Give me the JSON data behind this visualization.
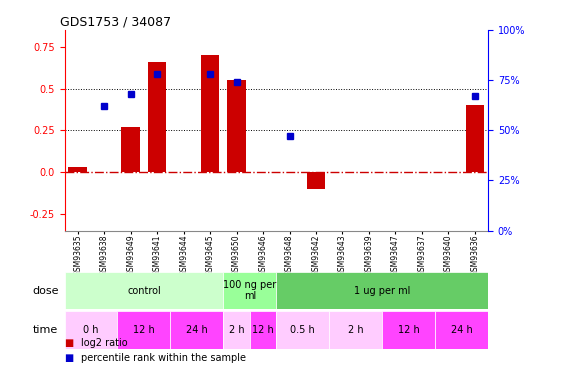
{
  "title": "GDS1753 / 34087",
  "samples": [
    "GSM93635",
    "GSM93638",
    "GSM93649",
    "GSM93641",
    "GSM93644",
    "GSM93645",
    "GSM93650",
    "GSM93646",
    "GSM93648",
    "GSM93642",
    "GSM93643",
    "GSM93639",
    "GSM93647",
    "GSM93637",
    "GSM93640",
    "GSM93636"
  ],
  "log2_ratio": [
    0.03,
    0.0,
    0.27,
    0.66,
    0.0,
    0.7,
    0.55,
    0.0,
    0.0,
    -0.1,
    0.0,
    0.0,
    0.0,
    0.0,
    0.0,
    0.4
  ],
  "percentile_rank": [
    null,
    0.62,
    0.68,
    0.78,
    null,
    0.78,
    0.74,
    null,
    0.47,
    null,
    null,
    null,
    null,
    null,
    null,
    0.67
  ],
  "bar_color": "#cc0000",
  "dot_color": "#0000cc",
  "hline0_color": "#cc0000",
  "hline025_color": "#000000",
  "hline050_color": "#000000",
  "ylim": [
    -0.35,
    0.85
  ],
  "yticks_left": [
    -0.25,
    0.0,
    0.25,
    0.5,
    0.75
  ],
  "yticks_right": [
    0,
    25,
    50,
    75,
    100
  ],
  "dose_groups": [
    {
      "label": "control",
      "start": 0,
      "end": 6,
      "color": "#ccffcc"
    },
    {
      "label": "100 ng per\nml",
      "start": 6,
      "end": 8,
      "color": "#99ff99"
    },
    {
      "label": "1 ug per ml",
      "start": 8,
      "end": 16,
      "color": "#66cc66"
    }
  ],
  "time_groups": [
    {
      "label": "0 h",
      "start": 0,
      "end": 2,
      "color": "#ffccff"
    },
    {
      "label": "12 h",
      "start": 2,
      "end": 4,
      "color": "#ff44ff"
    },
    {
      "label": "24 h",
      "start": 4,
      "end": 6,
      "color": "#ff44ff"
    },
    {
      "label": "2 h",
      "start": 6,
      "end": 7,
      "color": "#ffccff"
    },
    {
      "label": "12 h",
      "start": 7,
      "end": 8,
      "color": "#ff44ff"
    },
    {
      "label": "0.5 h",
      "start": 8,
      "end": 10,
      "color": "#ffccff"
    },
    {
      "label": "2 h",
      "start": 10,
      "end": 12,
      "color": "#ffccff"
    },
    {
      "label": "12 h",
      "start": 12,
      "end": 14,
      "color": "#ff44ff"
    },
    {
      "label": "24 h",
      "start": 14,
      "end": 16,
      "color": "#ff44ff"
    }
  ],
  "legend_bar_label": "log2 ratio",
  "legend_dot_label": "percentile rank within the sample",
  "dose_label": "dose",
  "time_label": "time",
  "fig_width": 5.61,
  "fig_height": 3.75
}
